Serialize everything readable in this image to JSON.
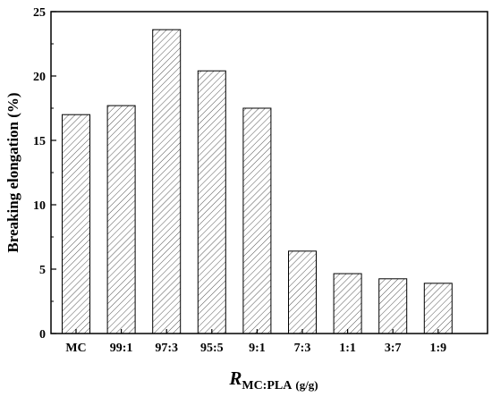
{
  "chart_data": {
    "type": "bar",
    "categories": [
      "MC",
      "99:1",
      "97:3",
      "95:5",
      "9:1",
      "7:3",
      "1:1",
      "3:7",
      "1:9"
    ],
    "values": [
      17.0,
      17.7,
      23.6,
      20.4,
      17.5,
      6.4,
      4.65,
      4.25,
      3.9
    ],
    "ylabel": "Breaking elongation (%)",
    "xlabel": {
      "main": "R",
      "subscript": "MC:PLA",
      "unit": "(g/g)"
    },
    "ylim": [
      0,
      25
    ],
    "yticks": [
      0,
      5,
      10,
      15,
      20,
      25
    ],
    "grid": false,
    "bar_fill": "hatched",
    "colors": {
      "bar_stroke": "#000000",
      "hatch": "#555555",
      "axis": "#000000"
    }
  }
}
